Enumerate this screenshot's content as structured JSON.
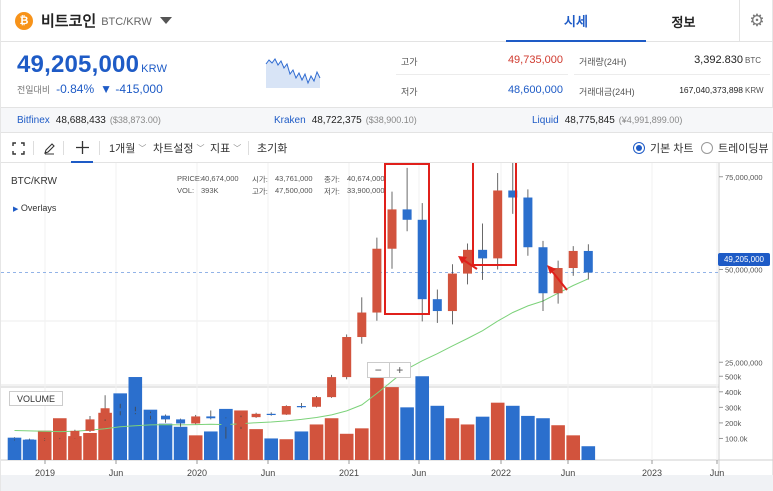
{
  "header": {
    "coin_symbol": "₿",
    "coin_name": "비트코인",
    "pair": "BTC/KRW",
    "tabs": [
      {
        "label": "시세"
      },
      {
        "label": "정보"
      }
    ],
    "settings_icon": "gear-icon"
  },
  "quote": {
    "price": "49,205,000",
    "unit": "KRW",
    "change_label": "전일대비",
    "change_pct": "-0.84%",
    "change_amount": "▼ -415,000",
    "high_label": "고가",
    "high_value": "49,735,000",
    "low_label": "저가",
    "low_value": "48,600,000",
    "volume_label": "거래량(24H)",
    "volume_value": "3,392.830",
    "volume_unit": "BTC",
    "turnover_label": "거래대금(24H)",
    "turnover_value": "167,040,373,898",
    "turnover_unit": "KRW"
  },
  "exchanges": [
    {
      "name": "Bitfinex",
      "price": "48,688,433",
      "usd": "($38,873.00)"
    },
    {
      "name": "Kraken",
      "price": "48,722,375",
      "usd": "($38,900.10)"
    },
    {
      "name": "Liquid",
      "price": "48,775,845",
      "usd": "(¥4,991,899.00)"
    }
  ],
  "toolbar": {
    "period": "1개월",
    "chart_settings": "차트설정",
    "indicators": "지표",
    "reset": "초기화",
    "basic_chart": "기본 차트",
    "tradingview": "트레이딩뷰"
  },
  "chart_info": {
    "symbol": "BTC/KRW",
    "overlays": "Overlays",
    "price_lbl": "PRICE:",
    "price_val": "40,674,000",
    "open_lbl": "시가:",
    "open_val": "43,761,000",
    "close_lbl": "종가:",
    "close_val": "40,674,000",
    "vol_lbl": "VOL:",
    "vol_val": "393K",
    "high_lbl": "고가:",
    "high_val": "47,500,000",
    "low_lbl": "저가:",
    "low_val": "33,900,000",
    "last_price_tag": "49,205,000",
    "zoom_out": "−",
    "zoom_in": "+",
    "volume_label": "VOLUME"
  },
  "chart_data": {
    "type": "candlestick",
    "interval": "1 month",
    "y_ticks": [
      "75,000,000",
      "50,000,000",
      "25,000,000"
    ],
    "volume_ticks": [
      "500k",
      "400k",
      "300k",
      "200k",
      "100.0k"
    ],
    "x_ticks": [
      "2019",
      "Jun",
      "2020",
      "Jun",
      "2021",
      "Jun",
      "2022",
      "Jun",
      "2023",
      "Jun"
    ],
    "candles": [
      {
        "o": 4.6,
        "c": 4.2,
        "h": 4.8,
        "l": 3.9
      },
      {
        "o": 4.2,
        "c": 4.0,
        "h": 4.4,
        "l": 3.8
      },
      {
        "o": 4.0,
        "c": 4.3,
        "h": 4.5,
        "l": 3.8
      },
      {
        "o": 4.3,
        "c": 4.4,
        "h": 4.6,
        "l": 4.1
      },
      {
        "o": 4.4,
        "c": 6.5,
        "h": 6.8,
        "l": 4.3
      },
      {
        "o": 6.5,
        "c": 9.6,
        "h": 10.5,
        "l": 6.2
      },
      {
        "o": 9.6,
        "c": 12.6,
        "h": 16.1,
        "l": 9.2
      },
      {
        "o": 12.6,
        "c": 11.8,
        "h": 13.8,
        "l": 10.7
      },
      {
        "o": 11.8,
        "c": 11.3,
        "h": 13.0,
        "l": 11.0
      },
      {
        "o": 11.3,
        "c": 10.6,
        "h": 11.7,
        "l": 9.6
      },
      {
        "o": 10.6,
        "c": 9.6,
        "h": 10.9,
        "l": 8.7
      },
      {
        "o": 9.6,
        "c": 8.5,
        "h": 9.8,
        "l": 7.6
      },
      {
        "o": 8.5,
        "c": 10.4,
        "h": 10.8,
        "l": 8.3
      },
      {
        "o": 10.4,
        "c": 9.9,
        "h": 12.0,
        "l": 9.6
      },
      {
        "o": 9.9,
        "c": 7.6,
        "h": 10.1,
        "l": 4.4
      },
      {
        "o": 7.6,
        "c": 10.2,
        "h": 10.6,
        "l": 7.0
      },
      {
        "o": 10.2,
        "c": 11.1,
        "h": 11.4,
        "l": 10.0
      },
      {
        "o": 11.1,
        "c": 10.9,
        "h": 11.5,
        "l": 10.6
      },
      {
        "o": 10.9,
        "c": 13.2,
        "h": 13.4,
        "l": 10.8
      },
      {
        "o": 13.2,
        "c": 13.0,
        "h": 14.0,
        "l": 12.6
      },
      {
        "o": 13.0,
        "c": 15.6,
        "h": 15.9,
        "l": 12.8
      },
      {
        "o": 15.6,
        "c": 21.0,
        "h": 21.6,
        "l": 15.4
      },
      {
        "o": 21.0,
        "c": 31.8,
        "h": 32.5,
        "l": 20.4
      },
      {
        "o": 31.8,
        "c": 38.4,
        "h": 42.5,
        "l": 30.0
      },
      {
        "o": 38.4,
        "c": 55.6,
        "h": 58.6,
        "l": 36.2
      },
      {
        "o": 55.6,
        "c": 66.2,
        "h": 71.0,
        "l": 50.2
      },
      {
        "o": 66.2,
        "c": 63.4,
        "h": 77.4,
        "l": 60.3
      },
      {
        "o": 63.4,
        "c": 42.0,
        "h": 67.9,
        "l": 36.0
      },
      {
        "o": 42.0,
        "c": 38.8,
        "h": 44.6,
        "l": 35.6
      },
      {
        "o": 38.8,
        "c": 48.9,
        "h": 51.4,
        "l": 35.2
      },
      {
        "o": 48.9,
        "c": 55.3,
        "h": 57.0,
        "l": 46.0
      },
      {
        "o": 55.3,
        "c": 53.0,
        "h": 62.4,
        "l": 47.2
      },
      {
        "o": 53.0,
        "c": 71.3,
        "h": 76.0,
        "l": 50.0
      },
      {
        "o": 71.3,
        "c": 69.4,
        "h": 82.7,
        "l": 65.0
      },
      {
        "o": 69.4,
        "c": 56.0,
        "h": 71.6,
        "l": 53.7
      },
      {
        "o": 56.0,
        "c": 43.6,
        "h": 57.7,
        "l": 38.8
      },
      {
        "o": 43.6,
        "c": 50.4,
        "h": 52.4,
        "l": 40.8
      },
      {
        "o": 50.4,
        "c": 55.0,
        "h": 56.3,
        "l": 48.3
      },
      {
        "o": 55.0,
        "c": 49.2,
        "h": 56.8,
        "l": 47.3
      }
    ],
    "volume_k": [
      105,
      92,
      150,
      230,
      115,
      135,
      265,
      390,
      495,
      285,
      195,
      175,
      120,
      145,
      290,
      280,
      160,
      100,
      95,
      145,
      190,
      230,
      130,
      165,
      520,
      430,
      300,
      500,
      310,
      230,
      190,
      240,
      330,
      310,
      245,
      230,
      185,
      120,
      50
    ],
    "ma_values": [
      6.6,
      6.5,
      6.4,
      6.3,
      6.4,
      6.7,
      7.1,
      7.6,
      7.9,
      8.1,
      8.2,
      8.1,
      8.2,
      8.3,
      8.2,
      8.4,
      8.7,
      8.9,
      9.2,
      9.6,
      10.1,
      10.8,
      11.9,
      13.5,
      16.6,
      19.9,
      23.2,
      25.4,
      27.3,
      29.4,
      31.4,
      33.5,
      36.1,
      38.4,
      40.2,
      41.5,
      43.6,
      45.7,
      47.5
    ],
    "last_price": 49.2,
    "y_unit": "millions KRW",
    "grid": true
  }
}
